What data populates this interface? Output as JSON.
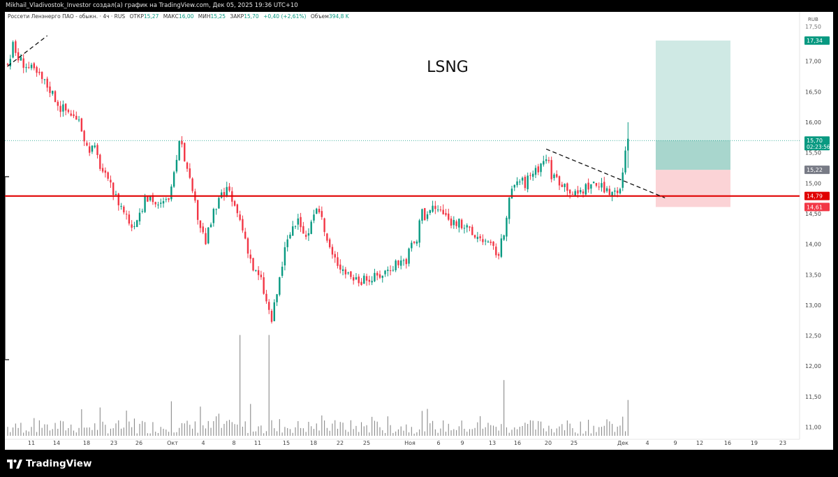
{
  "header": {
    "publisher_text": "Mikhail_Vladivostok_Investor создал(а) график на TradingView.com, Дек 05, 2025 19:36 UTC+10"
  },
  "infobar": {
    "symbol": "Россети Ленэнерго ПАО - обыкн. · 4ч · RUS",
    "open_label": "ОТКР",
    "open_value": "15,27",
    "high_label": "МАКС",
    "high_value": "16,00",
    "low_label": "МИН",
    "low_value": "15,25",
    "close_label": "ЗАКР",
    "close_value": "15,70",
    "change": "+0,40 (+2,61%)",
    "volume_label": "Объем",
    "volume_value": "394,8 K"
  },
  "footer": {
    "brand": "TradingView"
  },
  "colors": {
    "up": "#089981",
    "down": "#f23645",
    "support_line": "#e00000",
    "target_zone": "#cfe9e4",
    "stop_zone": "#fbd3d6",
    "volume": "#8a8a8a"
  },
  "chart_data": {
    "type": "candlestick",
    "title": "LSNG",
    "currency": "RUB",
    "interval": "4ч",
    "ylim": [
      10.8,
      17.65
    ],
    "y_ticks": [
      "17,00",
      "16,50",
      "16,00",
      "15,50",
      "15,00",
      "14,50",
      "14,00",
      "13,50",
      "13,00",
      "12,50",
      "12,00",
      "11,50",
      "11,00"
    ],
    "y_tick_values": [
      17.0,
      16.5,
      16.0,
      15.5,
      15.0,
      14.5,
      14.0,
      13.5,
      13.0,
      12.5,
      12.0,
      11.5,
      11.0
    ],
    "top_tick_partial": "17,50",
    "x_ticks": [
      "11",
      "14",
      "18",
      "23",
      "26",
      "Окт",
      "4",
      "8",
      "11",
      "15",
      "18",
      "22",
      "25",
      "Ноя",
      "6",
      "9",
      "13",
      "16",
      "20",
      "25",
      "Дек",
      "4",
      "9",
      "12",
      "16",
      "19",
      "23"
    ],
    "price_labels": [
      {
        "text": "17,34",
        "value": 17.34,
        "kind": "target"
      },
      {
        "text": "15,70",
        "value": 15.7,
        "kind": "last",
        "sub": "02:23:56"
      },
      {
        "text": "15,22",
        "value": 15.22,
        "kind": "entry"
      },
      {
        "text": "14,79",
        "value": 14.79,
        "kind": "support"
      },
      {
        "text": "14,61",
        "value": 14.61,
        "kind": "stop"
      }
    ],
    "support_level": 14.79,
    "position": {
      "entry": 15.22,
      "target": 17.34,
      "stop": 14.61
    },
    "last_price": 15.7,
    "trendlines": [
      {
        "from_bar": 0,
        "from_price": 16.92,
        "to_bar": 15,
        "to_price": 17.42
      },
      {
        "from_bar": 204,
        "from_price": 15.56,
        "to_bar": 249,
        "to_price": 14.76
      }
    ],
    "path": [
      [
        0,
        16.95
      ],
      [
        2,
        17.25
      ],
      [
        4,
        17.05
      ],
      [
        8,
        16.9
      ],
      [
        12,
        16.75
      ],
      [
        16,
        16.55
      ],
      [
        20,
        16.25
      ],
      [
        24,
        16.15
      ],
      [
        28,
        15.9
      ],
      [
        30,
        15.6
      ],
      [
        33,
        15.55
      ],
      [
        35,
        15.3
      ],
      [
        38,
        15.0
      ],
      [
        40,
        14.85
      ],
      [
        44,
        14.55
      ],
      [
        47,
        14.3
      ],
      [
        49,
        14.45
      ],
      [
        52,
        14.7
      ],
      [
        54,
        14.8
      ],
      [
        57,
        14.6
      ],
      [
        60,
        14.7
      ],
      [
        62,
        14.9
      ],
      [
        64,
        15.3
      ],
      [
        65,
        15.75
      ],
      [
        66,
        15.7
      ],
      [
        68,
        15.2
      ],
      [
        70,
        14.8
      ],
      [
        73,
        14.3
      ],
      [
        75,
        14.05
      ],
      [
        78,
        14.5
      ],
      [
        80,
        14.7
      ],
      [
        83,
        14.9
      ],
      [
        85,
        14.7
      ],
      [
        88,
        14.4
      ],
      [
        90,
        14.1
      ],
      [
        93,
        13.6
      ],
      [
        96,
        13.4
      ],
      [
        98,
        13.05
      ],
      [
        100,
        12.75
      ],
      [
        102,
        13.2
      ],
      [
        105,
        13.9
      ],
      [
        108,
        14.3
      ],
      [
        111,
        14.35
      ],
      [
        113,
        14.1
      ],
      [
        116,
        14.4
      ],
      [
        118,
        14.6
      ],
      [
        120,
        14.2
      ],
      [
        123,
        13.8
      ],
      [
        127,
        13.6
      ],
      [
        131,
        13.45
      ],
      [
        135,
        13.4
      ],
      [
        139,
        13.45
      ],
      [
        143,
        13.55
      ],
      [
        147,
        13.7
      ],
      [
        151,
        13.75
      ],
      [
        153,
        14.0
      ],
      [
        155,
        14.05
      ],
      [
        157,
        14.65
      ],
      [
        158,
        14.45
      ],
      [
        161,
        14.6
      ],
      [
        164,
        14.55
      ],
      [
        167,
        14.4
      ],
      [
        170,
        14.35
      ],
      [
        173,
        14.3
      ],
      [
        176,
        14.15
      ],
      [
        180,
        14.1
      ],
      [
        183,
        13.95
      ],
      [
        186,
        13.85
      ],
      [
        189,
        14.35
      ],
      [
        190,
        14.75
      ],
      [
        193,
        15.05
      ],
      [
        196,
        15.0
      ],
      [
        199,
        15.2
      ],
      [
        202,
        15.3
      ],
      [
        204,
        15.45
      ],
      [
        206,
        15.15
      ],
      [
        209,
        15.05
      ],
      [
        212,
        14.95
      ],
      [
        215,
        14.8
      ],
      [
        218,
        14.9
      ],
      [
        221,
        15.0
      ],
      [
        224,
        14.95
      ],
      [
        227,
        14.85
      ],
      [
        230,
        14.9
      ],
      [
        232,
        14.95
      ],
      [
        233,
        15.15
      ],
      [
        234,
        15.6
      ],
      [
        235,
        15.7
      ]
    ],
    "volume_spikes": [
      [
        28,
        1.0
      ],
      [
        88,
        3.8
      ],
      [
        99,
        3.8
      ],
      [
        188,
        2.1
      ],
      [
        235,
        1.35
      ],
      [
        62,
        1.3
      ],
      [
        73,
        1.1
      ],
      [
        92,
        1.2
      ],
      [
        45,
        0.95
      ]
    ]
  }
}
